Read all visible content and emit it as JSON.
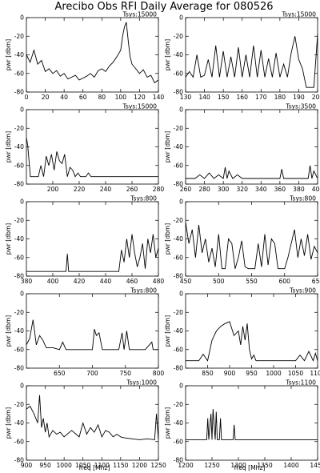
{
  "title": "Arecibo Obs RFI Daily Average for 080526",
  "ylabel": "pwr [dbm]",
  "xlabel": "freq [Mhz]",
  "chart_data": [
    {
      "type": "line",
      "tsys": "Tsys:15000",
      "xlim": [
        0,
        140
      ],
      "ylim": [
        -80,
        0
      ],
      "xticks": [
        0,
        20,
        40,
        60,
        80,
        100,
        120,
        140
      ],
      "yticks": [
        0,
        -20,
        -40,
        -60,
        -80
      ],
      "x": [
        0,
        4,
        8,
        12,
        16,
        20,
        24,
        28,
        32,
        36,
        40,
        44,
        48,
        52,
        56,
        60,
        64,
        68,
        72,
        76,
        80,
        84,
        88,
        92,
        96,
        100,
        102,
        104,
        106,
        108,
        110,
        112,
        116,
        120,
        124,
        128,
        132,
        136,
        140
      ],
      "y": [
        -40,
        -48,
        -35,
        -50,
        -46,
        -58,
        -55,
        -60,
        -57,
        -63,
        -60,
        -66,
        -64,
        -62,
        -67,
        -65,
        -63,
        -60,
        -64,
        -57,
        -55,
        -58,
        -52,
        -48,
        -42,
        -35,
        -20,
        -10,
        -5,
        -25,
        -42,
        -50,
        -55,
        -60,
        -56,
        -64,
        -62,
        -70,
        -67
      ]
    },
    {
      "type": "line",
      "tsys": "Tsys:15000",
      "xlim": [
        130,
        200
      ],
      "ylim": [
        -80,
        0
      ],
      "xticks": [
        130,
        140,
        150,
        160,
        170,
        180,
        190,
        200
      ],
      "yticks": [
        0,
        -20,
        -40,
        -60,
        -80
      ],
      "x": [
        130,
        132,
        134,
        136,
        138,
        140,
        142,
        144,
        146,
        148,
        150,
        152,
        154,
        156,
        158,
        160,
        162,
        164,
        166,
        168,
        170,
        172,
        174,
        176,
        178,
        180,
        182,
        184,
        186,
        188,
        190,
        192,
        194,
        196,
        198,
        200
      ],
      "y": [
        -64,
        -58,
        -64,
        -40,
        -64,
        -62,
        -45,
        -64,
        -30,
        -64,
        -36,
        -64,
        -42,
        -64,
        -32,
        -64,
        -40,
        -64,
        -30,
        -64,
        -35,
        -64,
        -44,
        -64,
        -38,
        -64,
        -50,
        -64,
        -38,
        -20,
        -45,
        -55,
        -75,
        -75,
        -75,
        -18
      ]
    },
    {
      "type": "line",
      "tsys": "Tsys:15000",
      "xlim": [
        180,
        280
      ],
      "ylim": [
        -80,
        0
      ],
      "xticks": [
        200,
        220,
        240,
        260,
        280
      ],
      "yticks": [
        0,
        -20,
        -40,
        -60,
        -80
      ],
      "x": [
        180,
        181,
        183,
        185,
        187,
        189,
        191,
        193,
        195,
        197,
        199,
        201,
        203,
        205,
        207,
        209,
        211,
        213,
        215,
        217,
        219,
        221,
        223,
        225,
        227,
        229,
        231,
        280
      ],
      "y": [
        -30,
        -38,
        -72,
        -72,
        -72,
        -72,
        -60,
        -72,
        -50,
        -60,
        -48,
        -65,
        -45,
        -55,
        -58,
        -48,
        -72,
        -62,
        -65,
        -72,
        -68,
        -72,
        -72,
        -72,
        -68,
        -72,
        -72,
        -72
      ]
    },
    {
      "type": "line",
      "tsys": "Tsys:3500",
      "xlim": [
        260,
        400
      ],
      "ylim": [
        -80,
        0
      ],
      "xticks": [
        260,
        280,
        300,
        320,
        340,
        360,
        380,
        400
      ],
      "yticks": [
        0,
        -20,
        -40,
        -60,
        -80
      ],
      "x": [
        260,
        270,
        275,
        280,
        285,
        290,
        295,
        300,
        302,
        304,
        306,
        310,
        315,
        320,
        360,
        362,
        364,
        366,
        380,
        390,
        392,
        394,
        396,
        400
      ],
      "y": [
        -74,
        -74,
        -70,
        -74,
        -68,
        -74,
        -70,
        -74,
        -62,
        -74,
        -66,
        -74,
        -70,
        -74,
        -74,
        -64,
        -74,
        -74,
        -74,
        -74,
        -60,
        -74,
        -66,
        -74
      ]
    },
    {
      "type": "line",
      "tsys": "Tsys:800",
      "xlim": [
        380,
        480
      ],
      "ylim": [
        -80,
        0
      ],
      "xticks": [
        380,
        400,
        420,
        440,
        460,
        480
      ],
      "yticks": [
        0,
        -20,
        -40,
        -60,
        -80
      ],
      "x": [
        380,
        410,
        411,
        412,
        450,
        452,
        454,
        456,
        458,
        460,
        462,
        464,
        466,
        468,
        470,
        472,
        474,
        476,
        478,
        480
      ],
      "y": [
        -75,
        -75,
        -56,
        -75,
        -75,
        -52,
        -65,
        -40,
        -60,
        -35,
        -55,
        -70,
        -60,
        -45,
        -72,
        -40,
        -55,
        -35,
        -60,
        -50
      ]
    },
    {
      "type": "line",
      "tsys": "Tsys:800",
      "xlim": [
        450,
        650
      ],
      "ylim": [
        -80,
        0
      ],
      "xticks": [
        450,
        500,
        550,
        600,
        650
      ],
      "yticks": [
        0,
        -20,
        -40,
        -60,
        -80
      ],
      "x": [
        450,
        455,
        460,
        465,
        470,
        475,
        480,
        485,
        490,
        495,
        500,
        505,
        510,
        515,
        520,
        525,
        530,
        535,
        540,
        545,
        550,
        555,
        560,
        565,
        570,
        575,
        580,
        585,
        590,
        595,
        600,
        605,
        610,
        615,
        620,
        625,
        630,
        635,
        640,
        645,
        650
      ],
      "y": [
        -22,
        -45,
        -30,
        -60,
        -25,
        -55,
        -40,
        -65,
        -50,
        -70,
        -35,
        -72,
        -72,
        -40,
        -45,
        -72,
        -60,
        -42,
        -70,
        -72,
        -72,
        -72,
        -45,
        -70,
        -35,
        -68,
        -40,
        -45,
        -72,
        -72,
        -72,
        -60,
        -45,
        -30,
        -60,
        -40,
        -58,
        -35,
        -62,
        -48,
        -55
      ]
    },
    {
      "type": "line",
      "tsys": "Tsys:800",
      "xlim": [
        600,
        800
      ],
      "ylim": [
        -80,
        0
      ],
      "xticks": [
        650,
        700,
        750,
        800
      ],
      "yticks": [
        0,
        -20,
        -40,
        -60,
        -80
      ],
      "x": [
        600,
        605,
        610,
        615,
        620,
        625,
        630,
        640,
        650,
        655,
        660,
        680,
        700,
        703,
        706,
        710,
        715,
        720,
        740,
        745,
        748,
        752,
        756,
        760,
        780,
        790,
        792,
        800
      ],
      "y": [
        -55,
        -48,
        -28,
        -55,
        -45,
        -50,
        -58,
        -58,
        -60,
        -52,
        -60,
        -60,
        -60,
        -38,
        -45,
        -42,
        -60,
        -60,
        -60,
        -42,
        -60,
        -40,
        -60,
        -60,
        -60,
        -52,
        -60,
        -60
      ]
    },
    {
      "type": "line",
      "tsys": "Tsys:900",
      "xlim": [
        800,
        1100
      ],
      "ylim": [
        -80,
        0
      ],
      "xticks": [
        850,
        900,
        950,
        1000,
        1050,
        1100
      ],
      "yticks": [
        0,
        -20,
        -40,
        -60,
        -80
      ],
      "x": [
        800,
        830,
        840,
        850,
        860,
        870,
        880,
        890,
        900,
        910,
        920,
        925,
        930,
        935,
        940,
        945,
        950,
        955,
        960,
        1000,
        1050,
        1060,
        1070,
        1080,
        1090,
        1095,
        1100
      ],
      "y": [
        -72,
        -72,
        -65,
        -72,
        -50,
        -40,
        -35,
        -32,
        -30,
        -45,
        -40,
        -55,
        -35,
        -50,
        -32,
        -60,
        -70,
        -66,
        -72,
        -72,
        -72,
        -66,
        -72,
        -62,
        -72,
        -64,
        -72
      ]
    },
    {
      "type": "line",
      "tsys": "Tsys:1000",
      "xlim": [
        900,
        1250
      ],
      "ylim": [
        -80,
        0
      ],
      "xticks": [
        900,
        950,
        1000,
        1050,
        1100,
        1150,
        1200,
        1250
      ],
      "yticks": [
        0,
        -20,
        -40,
        -60,
        -80
      ],
      "x": [
        900,
        910,
        920,
        930,
        935,
        940,
        945,
        950,
        955,
        960,
        970,
        980,
        990,
        1000,
        1020,
        1040,
        1050,
        1060,
        1070,
        1080,
        1090,
        1100,
        1110,
        1120,
        1130,
        1140,
        1150,
        1160,
        1180,
        1200,
        1220,
        1240,
        1245,
        1250
      ],
      "y": [
        -25,
        -22,
        -30,
        -40,
        -10,
        -45,
        -35,
        -50,
        -40,
        -55,
        -48,
        -52,
        -50,
        -55,
        -48,
        -55,
        -40,
        -52,
        -45,
        -50,
        -42,
        -55,
        -48,
        -50,
        -55,
        -52,
        -55,
        -56,
        -57,
        -58,
        -57,
        -58,
        -30,
        -58
      ]
    },
    {
      "type": "line",
      "tsys": "Tsys:1100",
      "xlim": [
        1200,
        1450
      ],
      "ylim": [
        -80,
        0
      ],
      "xticks": [
        1200,
        1250,
        1300,
        1350,
        1400,
        1450
      ],
      "yticks": [
        0,
        -20,
        -40,
        -60,
        -80
      ],
      "x": [
        1200,
        1240,
        1242,
        1244,
        1248,
        1250,
        1252,
        1256,
        1258,
        1260,
        1264,
        1266,
        1268,
        1290,
        1292,
        1294,
        1450
      ],
      "y": [
        -58,
        -58,
        -35,
        -58,
        -30,
        -58,
        -25,
        -58,
        -28,
        -58,
        -58,
        -35,
        -58,
        -58,
        -42,
        -58,
        -58
      ]
    }
  ]
}
